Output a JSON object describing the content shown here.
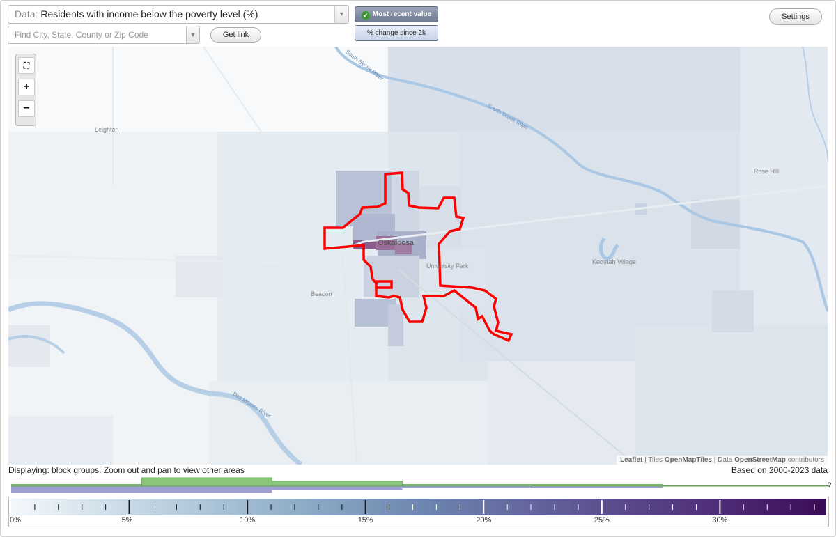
{
  "controls": {
    "data_prefix": "Data:",
    "data_label": "Residents with income below the poverty level (%)",
    "search_placeholder": "Find City, State, County or Zip Code",
    "get_link_label": "Get link",
    "settings_label": "Settings",
    "toggle_recent": "Most recent value",
    "toggle_change": "% change since 2k",
    "active_toggle": "Most recent value"
  },
  "map": {
    "places": {
      "leighton": "Leighton",
      "oskaloosa": "Oskaloosa",
      "university_park": "University Park",
      "beacon": "Beacon",
      "rose_hill": "Rose Hill",
      "keomah_village": "Keomah Village"
    },
    "rivers": {
      "south_skunk_1": "South Skunk River",
      "south_skunk_2": "South Skunk River",
      "des_moines": "Des Moines River"
    },
    "attribution": {
      "leaflet": "Leaflet",
      "tiles_prefix": "Tiles",
      "tiles": "OpenMapTiles",
      "data_prefix": "Data",
      "data": "OpenStreetMap",
      "suffix": "contributors"
    },
    "colors": {
      "highlight_outline": "#ff0000",
      "high_poverty": "#8a5a8c"
    }
  },
  "footer": {
    "display_note": "Displaying: block groups. Zoom out and pan to view other areas",
    "data_years": "Based on 2000-2023 data",
    "help_mark": "?"
  },
  "legend": {
    "labels": [
      "0%",
      "5%",
      "10%",
      "15%",
      "20%",
      "25%",
      "30%"
    ],
    "max_value": 34.5,
    "color_low": "#f4f8fb",
    "color_high": "#3b0b55"
  },
  "histogram": {
    "green_bins": [
      {
        "from": 0,
        "to": 5.5,
        "level": 0.2
      },
      {
        "from": 5.5,
        "to": 11,
        "level": 1.0
      },
      {
        "from": 11,
        "to": 16.5,
        "level": 0.6
      },
      {
        "from": 16.5,
        "to": 27.5,
        "level": 0.2
      },
      {
        "from": 27.5,
        "to": 34.5,
        "level": 0.05
      }
    ],
    "purple_bins": [
      {
        "from": 0,
        "to": 11,
        "level": 1.0
      },
      {
        "from": 11,
        "to": 16.5,
        "level": 0.6
      },
      {
        "from": 16.5,
        "to": 22,
        "level": 0.3
      },
      {
        "from": 22,
        "to": 27.5,
        "level": 0.2
      }
    ],
    "green_color": "#8ac77a",
    "purple_color": "#9d9fd0"
  }
}
